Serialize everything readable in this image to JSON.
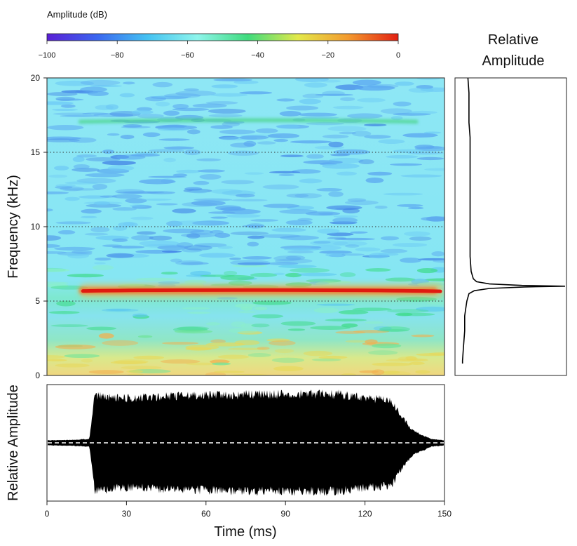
{
  "chart_data": [
    {
      "type": "heatmap",
      "name": "spectrogram",
      "xlabel": "Time (ms)",
      "ylabel": "Frequency (kHz)",
      "xlim": [
        0,
        150
      ],
      "ylim": [
        0,
        20
      ],
      "yticks": [
        0,
        5,
        10,
        15,
        20
      ],
      "gridlines_y": [
        5,
        10,
        15
      ],
      "colorbar": {
        "title": "Amplitude (dB)",
        "range": [
          -100,
          0
        ],
        "ticks": [
          -100,
          -80,
          -60,
          -40,
          -20,
          0
        ],
        "colors": [
          "#5a1fd6",
          "#3a66f0",
          "#44c2f2",
          "#8ef5ec",
          "#3fdb7d",
          "#e3e94a",
          "#f39a2e",
          "#e32012"
        ]
      },
      "features": [
        {
          "label": "tonal band",
          "freq_khz": 5.7,
          "t_start_ms": 12,
          "t_end_ms": 150,
          "amplitude_db": -5
        },
        {
          "label": "harmonic trace",
          "freq_khz": 17.1,
          "t_start_ms": 12,
          "t_end_ms": 140,
          "amplitude_db": -45
        }
      ]
    },
    {
      "type": "line",
      "name": "frequency-spectrum",
      "title": "Relative Amplitude",
      "peak_freq_khz": 6.0,
      "x": [
        20,
        19,
        18,
        17,
        16,
        15,
        14,
        13,
        12,
        11,
        10,
        9,
        8,
        7,
        6.5,
        6.3,
        6.15,
        6.05,
        6.0,
        5.95,
        5.85,
        5.7,
        5.5,
        5.0,
        4.5,
        4,
        3,
        2,
        1,
        0.8
      ],
      "values": [
        0.1,
        0.11,
        0.11,
        0.11,
        0.12,
        0.12,
        0.12,
        0.12,
        0.12,
        0.12,
        0.12,
        0.12,
        0.12,
        0.13,
        0.15,
        0.18,
        0.3,
        0.6,
        1.0,
        0.62,
        0.3,
        0.16,
        0.11,
        0.09,
        0.08,
        0.07,
        0.07,
        0.06,
        0.05,
        0.05
      ]
    },
    {
      "type": "area",
      "name": "waveform",
      "xlabel": "Time (ms)",
      "ylabel": "Relative Amplitude",
      "xlim": [
        0,
        150
      ],
      "xticks": [
        0,
        30,
        60,
        90,
        120,
        150
      ],
      "envelope": {
        "time_ms": [
          0,
          10,
          16,
          18,
          30,
          60,
          90,
          110,
          120,
          130,
          133,
          138,
          145,
          150
        ],
        "amplitude": [
          0.05,
          0.06,
          0.08,
          0.98,
          0.92,
          0.98,
          1.0,
          1.0,
          0.92,
          0.88,
          0.6,
          0.25,
          0.08,
          0.05
        ]
      }
    }
  ]
}
